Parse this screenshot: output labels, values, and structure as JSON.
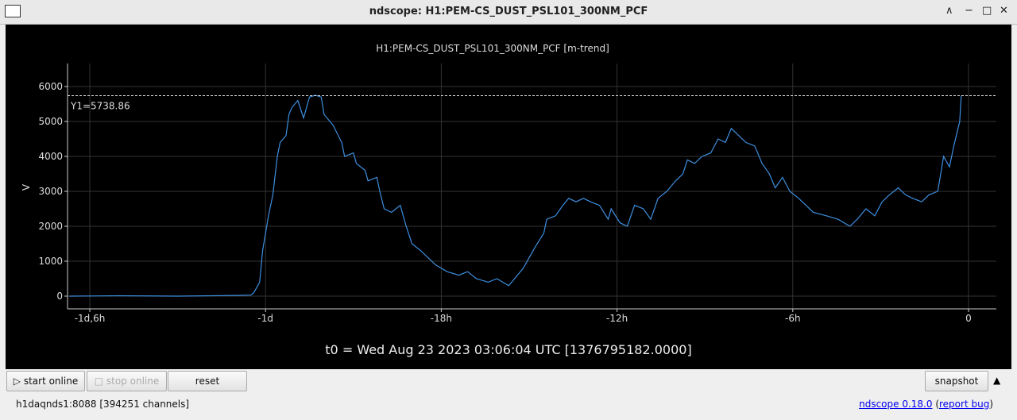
{
  "window": {
    "title": "ndscope: H1:PEM-CS_DUST_PSL101_300NM_PCF"
  },
  "chart_data": {
    "type": "line",
    "title": "H1:PEM-CS_DUST_PSL101_300NM_PCF [m-trend]",
    "y_label": "V",
    "x": [
      -30.7,
      -29,
      -27,
      -25,
      -24.5,
      -24.4,
      -24.2,
      -24.1,
      -23.9,
      -23.75,
      -23.6,
      -23.5,
      -23.3,
      -23.2,
      -23.1,
      -22.9,
      -22.7,
      -22.5,
      -22.3,
      -22.1,
      -22.0,
      -21.7,
      -21.4,
      -21.3,
      -21.0,
      -20.9,
      -20.6,
      -20.5,
      -20.2,
      -20.1,
      -19.95,
      -19.7,
      -19.4,
      -19.2,
      -19.0,
      -18.7,
      -18.45,
      -18.2,
      -17.8,
      -17.4,
      -17.1,
      -16.8,
      -16.4,
      -16.1,
      -15.7,
      -15.5,
      -15.2,
      -15.0,
      -14.8,
      -14.5,
      -14.4,
      -14.1,
      -13.85,
      -13.65,
      -13.4,
      -13.15,
      -12.9,
      -12.6,
      -12.3,
      -12.2,
      -11.9,
      -11.65,
      -11.4,
      -11.1,
      -10.85,
      -10.6,
      -10.3,
      -10.0,
      -9.75,
      -9.6,
      -9.35,
      -9.1,
      -8.8,
      -8.55,
      -8.3,
      -8.1,
      -7.85,
      -7.6,
      -7.3,
      -7.05,
      -6.8,
      -6.6,
      -6.35,
      -6.1,
      -5.8,
      -5.55,
      -5.3,
      -4.85,
      -4.45,
      -4.05,
      -3.8,
      -3.5,
      -3.2,
      -2.95,
      -2.7,
      -2.4,
      -2.15,
      -1.9,
      -1.6,
      -1.35,
      -1.05,
      -0.85,
      -0.65,
      -0.5,
      -0.3,
      -0.25
    ],
    "series": [
      {
        "name": "H1:PEM-CS_DUST_PSL101_300NM_PCF",
        "color": "#3d8fe0",
        "values": [
          0,
          10,
          0,
          20,
          30,
          100,
          400,
          1300,
          2300,
          2900,
          4000,
          4400,
          4600,
          5200,
          5400,
          5600,
          5100,
          5700,
          5750,
          5700,
          5200,
          4900,
          4400,
          4000,
          4100,
          3800,
          3600,
          3300,
          3400,
          3000,
          2500,
          2400,
          2600,
          2000,
          1500,
          1300,
          1100,
          900,
          700,
          600,
          700,
          500,
          400,
          500,
          300,
          500,
          800,
          1100,
          1400,
          1800,
          2200,
          2300,
          2600,
          2800,
          2700,
          2800,
          2700,
          2600,
          2200,
          2500,
          2100,
          2000,
          2600,
          2500,
          2200,
          2800,
          3000,
          3300,
          3500,
          3900,
          3800,
          4000,
          4100,
          4500,
          4400,
          4800,
          4600,
          4400,
          4300,
          3800,
          3500,
          3100,
          3400,
          3000,
          2800,
          2600,
          2400,
          2300,
          2200,
          2000,
          2200,
          2500,
          2300,
          2700,
          2900,
          3100,
          2900,
          2800,
          2700,
          2900,
          3000,
          4000,
          3700,
          4300,
          5000,
          5739
        ]
      }
    ],
    "xlim": [
      -30.76,
      0.95
    ],
    "xticks": [
      {
        "value": -30,
        "label": "-1d,6h"
      },
      {
        "value": -24,
        "label": "-1d"
      },
      {
        "value": -18,
        "label": "-18h"
      },
      {
        "value": -12,
        "label": "-12h"
      },
      {
        "value": -6,
        "label": "-6h"
      },
      0
    ],
    "ylim": [
      -364,
      6659
    ],
    "yticks": [
      0,
      1000,
      2000,
      3000,
      4000,
      5000,
      6000
    ],
    "grid": true,
    "cursor": {
      "value": 5738.86,
      "label": "Y1=5738.86"
    },
    "t0": "t0 = Wed Aug 23 2023 03:06:04 UTC [1376795182.0000]"
  },
  "controls": {
    "start": "start online",
    "stop": "stop online",
    "reset": "reset",
    "snapshot": "snapshot"
  },
  "status": {
    "server": "h1daqnds1:8088  [394251 channels]",
    "version": "ndscope 0.18.0",
    "bug": "report bug"
  }
}
